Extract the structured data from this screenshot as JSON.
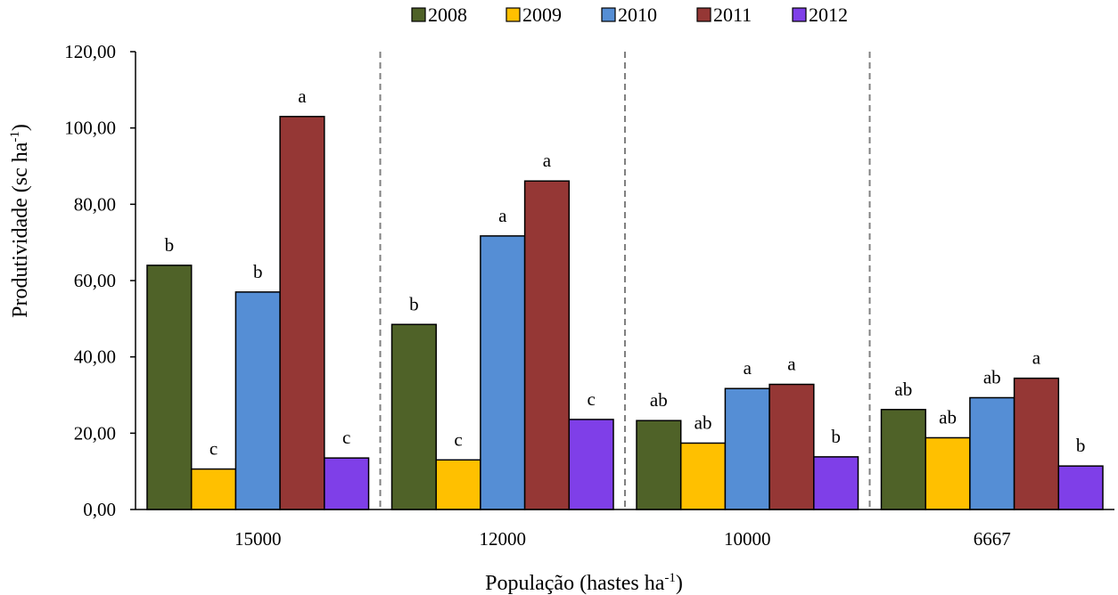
{
  "chart_data": {
    "type": "bar",
    "categories": [
      "15000",
      "12000",
      "10000",
      "6667"
    ],
    "xlabel": {
      "main": "População (hastes ha",
      "sup": "-1",
      "close": ")"
    },
    "ylabel": {
      "main": "Produtividade (sc ha",
      "sup": "-1",
      "close": ")"
    },
    "ylim": [
      0,
      120
    ],
    "yticks": [
      "0,00",
      "20,00",
      "40,00",
      "60,00",
      "80,00",
      "100,00",
      "120,00"
    ],
    "grid": false,
    "legend_position": "top",
    "group_separators": "dashed",
    "series": [
      {
        "name": "2008",
        "color": "#4f6228",
        "values": [
          64.0,
          48.5,
          23.3,
          26.2
        ],
        "labels": [
          "b",
          "b",
          "ab",
          "ab"
        ]
      },
      {
        "name": "2009",
        "color": "#ffc000",
        "values": [
          10.6,
          13.0,
          17.4,
          18.8
        ],
        "labels": [
          "c",
          "c",
          "ab",
          "ab"
        ]
      },
      {
        "name": "2010",
        "color": "#558ed5",
        "values": [
          57.0,
          71.7,
          31.7,
          29.3
        ],
        "labels": [
          "b",
          "a",
          "a",
          "ab"
        ]
      },
      {
        "name": "2011",
        "color": "#953735",
        "values": [
          103.0,
          86.1,
          32.8,
          34.4
        ],
        "labels": [
          "a",
          "a",
          "a",
          "a"
        ]
      },
      {
        "name": "2012",
        "color": "#7f3fe8",
        "values": [
          13.5,
          23.6,
          13.8,
          11.4
        ],
        "labels": [
          "c",
          "c",
          "b",
          "b"
        ]
      }
    ]
  }
}
